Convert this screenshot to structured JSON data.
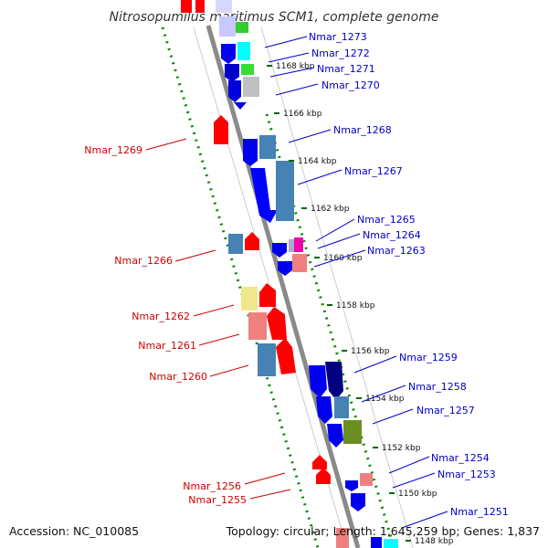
{
  "title": "Nitrosopumilus maritimus SCM1, complete genome",
  "footer": {
    "accession": "Accession: NC_010085",
    "topology": "Topology: circular; Length: 1,645,259 bp; Genes: 1,837"
  },
  "colors": {
    "forward_label": "#0000cc",
    "reverse_label": "#cc0000"
  },
  "ticks": [
    {
      "label": "1168 kbp"
    },
    {
      "label": "1166 kbp"
    },
    {
      "label": "1164 kbp"
    },
    {
      "label": "1162 kbp"
    },
    {
      "label": "1160 kbp"
    },
    {
      "label": "1158 kbp"
    },
    {
      "label": "1156 kbp"
    },
    {
      "label": "1154 kbp"
    },
    {
      "label": "1152 kbp"
    },
    {
      "label": "1150 kbp"
    },
    {
      "label": "1148 kbp"
    }
  ],
  "gene_labels": [
    {
      "name": "Nmar_1273",
      "strand": "forward"
    },
    {
      "name": "Nmar_1272",
      "strand": "forward"
    },
    {
      "name": "Nmar_1271",
      "strand": "forward"
    },
    {
      "name": "Nmar_1270",
      "strand": "forward"
    },
    {
      "name": "Nmar_1268",
      "strand": "forward"
    },
    {
      "name": "Nmar_1269",
      "strand": "reverse"
    },
    {
      "name": "Nmar_1267",
      "strand": "forward"
    },
    {
      "name": "Nmar_1265",
      "strand": "forward"
    },
    {
      "name": "Nmar_1264",
      "strand": "forward"
    },
    {
      "name": "Nmar_1263",
      "strand": "forward"
    },
    {
      "name": "Nmar_1266",
      "strand": "reverse"
    },
    {
      "name": "Nmar_1262",
      "strand": "reverse"
    },
    {
      "name": "Nmar_1261",
      "strand": "reverse"
    },
    {
      "name": "Nmar_1260",
      "strand": "reverse"
    },
    {
      "name": "Nmar_1259",
      "strand": "forward"
    },
    {
      "name": "Nmar_1258",
      "strand": "forward"
    },
    {
      "name": "Nmar_1257",
      "strand": "forward"
    },
    {
      "name": "Nmar_1254",
      "strand": "forward"
    },
    {
      "name": "Nmar_1253",
      "strand": "forward"
    },
    {
      "name": "Nmar_1256",
      "strand": "reverse"
    },
    {
      "name": "Nmar_1255",
      "strand": "reverse"
    },
    {
      "name": "Nmar_1251",
      "strand": "forward"
    }
  ]
}
